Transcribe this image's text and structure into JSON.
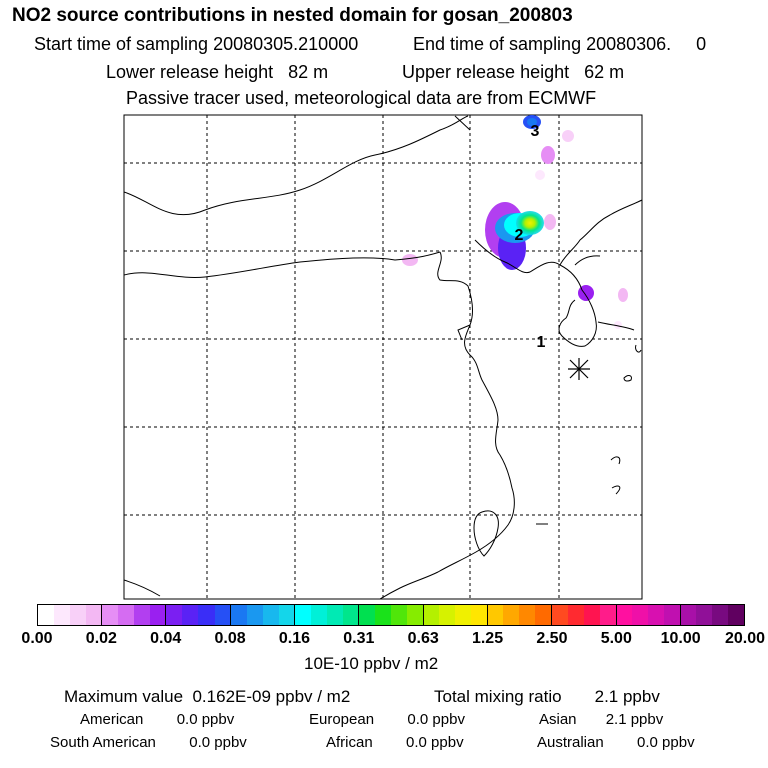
{
  "title": "NO2 source contributions in nested domain for gosan_200803",
  "header": {
    "start_time": "Start time of sampling 20080305.210000",
    "end_time": "End time of sampling 20080306.     0",
    "lower_release": "Lower release height   82 m",
    "upper_release": "Upper release height   62 m",
    "tracer_note": "Passive tracer used, meteorological data are from ECMWF"
  },
  "map": {
    "markers": [
      "1",
      "2",
      "3"
    ],
    "receptor_symbol": "asterisk"
  },
  "colorbar": {
    "ticks": [
      "0.00",
      "0.02",
      "0.04",
      "0.08",
      "0.16",
      "0.31",
      "0.63",
      "1.25",
      "2.50",
      "5.00",
      "10.00",
      "20.00"
    ],
    "unit": "10E-10 ppbv / m2",
    "colors": [
      "#ffffff",
      "#fde8fd",
      "#f8d0f8",
      "#f3b8f3",
      "#e68ef5",
      "#d56cf2",
      "#b23ff0",
      "#9a20f0",
      "#7b1ff2",
      "#5a22f5",
      "#3a2ef7",
      "#2650f5",
      "#1a78f2",
      "#1a98f0",
      "#18b8ee",
      "#14d6ea",
      "#00ffff",
      "#00f0d8",
      "#00eab4",
      "#00e68c",
      "#00e050",
      "#1ae21a",
      "#50e60a",
      "#86ec00",
      "#b4f000",
      "#d6f200",
      "#f0f000",
      "#ffe600",
      "#ffc800",
      "#ffa800",
      "#ff8800",
      "#ff6a00",
      "#ff4a20",
      "#ff2a30",
      "#ff1450",
      "#ff1c8a",
      "#ff10a0",
      "#ef10a8",
      "#d810b0",
      "#c010b0",
      "#a810a8",
      "#901098",
      "#780a80",
      "#600060"
    ]
  },
  "stats": {
    "maximum": "Maximum value  0.162E-09 ppbv / m2",
    "total": "Total mixing ratio       2.1 ppbv",
    "american": "American        0.0 ppbv",
    "european": "European        0.0 ppbv",
    "asian": "Asian       2.1 ppbv",
    "south_american": "South American        0.0 ppbv",
    "african": "African        0.0 ppbv",
    "australian": "Australian        0.0 ppbv"
  }
}
